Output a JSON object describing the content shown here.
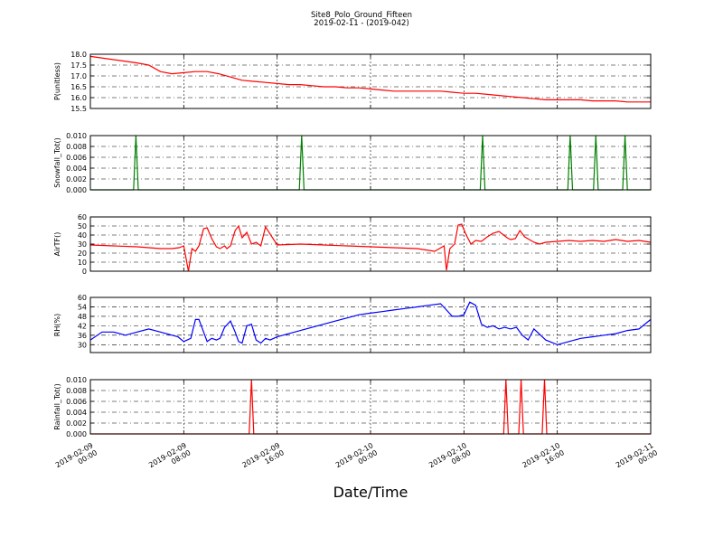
{
  "figure": {
    "title": "Site8_Polo_Ground_Fifteen",
    "subtitle": "2019-02-11 - (2019-042)",
    "xlabel": "Date/Time"
  },
  "chart_data": [
    {
      "type": "line",
      "ylabel": "P(unitless)",
      "color": "#ff0000",
      "ylim": [
        15.5,
        18.0
      ],
      "yticks": [
        "15.5",
        "16.0",
        "16.5",
        "17.0",
        "17.5",
        "18.0"
      ],
      "xlim": [
        0,
        48
      ],
      "xticks": [
        [
          "2019-02-09",
          "00:00"
        ],
        [
          "2019-02-09",
          "08:00"
        ],
        [
          "2019-02-09",
          "16:00"
        ],
        [
          "2019-02-10",
          "00:00"
        ],
        [
          "2019-02-10",
          "08:00"
        ],
        [
          "2019-02-10",
          "16:00"
        ],
        [
          "2019-02-11",
          "00:00"
        ]
      ],
      "grid": true,
      "series": [
        {
          "x": [
            0,
            2,
            4,
            5,
            6,
            7,
            8,
            9,
            10,
            11,
            12,
            13,
            14,
            15,
            16,
            17,
            18,
            19,
            20,
            21,
            22,
            23,
            24,
            25,
            26,
            27,
            28,
            29,
            30,
            31,
            32,
            33,
            34,
            35,
            36,
            37,
            38,
            39,
            40,
            41,
            42,
            43,
            44,
            45,
            46,
            47,
            48
          ],
          "y": [
            17.9,
            17.75,
            17.6,
            17.5,
            17.2,
            17.1,
            17.15,
            17.2,
            17.2,
            17.1,
            16.95,
            16.8,
            16.75,
            16.7,
            16.65,
            16.6,
            16.6,
            16.55,
            16.5,
            16.5,
            16.45,
            16.45,
            16.4,
            16.35,
            16.3,
            16.3,
            16.3,
            16.3,
            16.3,
            16.25,
            16.2,
            16.2,
            16.15,
            16.1,
            16.05,
            16.0,
            15.95,
            15.9,
            15.9,
            15.9,
            15.9,
            15.85,
            15.85,
            15.85,
            15.8,
            15.8,
            15.8
          ]
        }
      ]
    },
    {
      "type": "line",
      "ylabel": "Snowfall_Tot()",
      "color": "#008000",
      "ylim": [
        0.0,
        0.01
      ],
      "yticks": [
        "0.000",
        "0.002",
        "0.004",
        "0.006",
        "0.008",
        "0.010"
      ],
      "xlim": [
        0,
        48
      ],
      "grid": true,
      "series": [
        {
          "x": [
            0,
            3.7,
            3.9,
            4.1,
            17.9,
            18.1,
            18.3,
            33.4,
            33.6,
            33.8,
            40.9,
            41.1,
            41.3,
            43.1,
            43.3,
            43.5,
            45.6,
            45.8,
            46.0,
            48
          ],
          "y": [
            0,
            0,
            0.01,
            0,
            0,
            0.01,
            0,
            0,
            0.01,
            0,
            0,
            0.01,
            0,
            0,
            0.01,
            0,
            0,
            0.01,
            0,
            0
          ]
        }
      ]
    },
    {
      "type": "line",
      "ylabel": "AirTF()",
      "color": "#ff0000",
      "ylim": [
        0,
        60
      ],
      "yticks": [
        "0",
        "10",
        "20",
        "30",
        "40",
        "50",
        "60"
      ],
      "xlim": [
        0,
        48
      ],
      "grid": true,
      "series": [
        {
          "x": [
            0,
            2,
            4,
            5,
            6,
            7,
            7.6,
            7.8,
            8.0,
            8.4,
            8.7,
            9.0,
            9.3,
            9.7,
            10.0,
            10.4,
            10.8,
            11.1,
            11.5,
            11.7,
            12.0,
            12.4,
            12.7,
            13.0,
            13.4,
            13.8,
            14.2,
            14.6,
            15.0,
            16,
            18,
            20,
            22,
            24,
            26,
            28,
            29.5,
            30.3,
            30.5,
            30.8,
            31.2,
            31.5,
            31.8,
            32.2,
            32.6,
            33.0,
            33.5,
            34,
            34.5,
            35.0,
            35.4,
            35.7,
            36.0,
            36.4,
            36.8,
            37.2,
            37.6,
            38.0,
            38.5,
            39.0,
            40,
            41,
            42,
            43,
            44,
            45,
            46,
            47,
            48
          ],
          "y": [
            29,
            28,
            27,
            26,
            25,
            25,
            26,
            27,
            28,
            0,
            25,
            22,
            28,
            47,
            48,
            36,
            27,
            25,
            28,
            25,
            28,
            45,
            50,
            37,
            43,
            30,
            32,
            28,
            49,
            29,
            30,
            29,
            28,
            27,
            26,
            25,
            22,
            28,
            1,
            25,
            30,
            51,
            52,
            40,
            30,
            34,
            33,
            38,
            42,
            44,
            40,
            37,
            35,
            36,
            45,
            38,
            35,
            32,
            30,
            32,
            33,
            34,
            33,
            34,
            33,
            35,
            33,
            34,
            32
          ]
        }
      ]
    },
    {
      "type": "line",
      "ylabel": "RH(%)",
      "color": "#0000ff",
      "ylim": [
        25,
        60
      ],
      "yticks": [
        "30",
        "36",
        "42",
        "48",
        "54",
        "60"
      ],
      "xlim": [
        0,
        48
      ],
      "grid": true,
      "series": [
        {
          "x": [
            0,
            1,
            2,
            3,
            4,
            5,
            6,
            7,
            7.5,
            8,
            8.6,
            9.0,
            9.3,
            9.7,
            10.0,
            10.4,
            10.8,
            11.1,
            11.5,
            12.0,
            12.4,
            12.7,
            13.0,
            13.4,
            13.8,
            14.2,
            14.6,
            15.0,
            15.4,
            16,
            17,
            18,
            19,
            20,
            21,
            22,
            23,
            24,
            25,
            26,
            27,
            28,
            29,
            30,
            30.5,
            31,
            31.5,
            32,
            32.5,
            33,
            33.5,
            34,
            34.5,
            35,
            35.5,
            36,
            36.5,
            37,
            37.5,
            38,
            39,
            40,
            41,
            42,
            43,
            44,
            45,
            46,
            47,
            48
          ],
          "y": [
            33,
            38,
            38,
            36,
            38,
            40,
            38,
            36,
            35,
            32,
            34,
            46,
            46,
            38,
            32,
            34,
            33,
            34,
            41,
            45,
            38,
            32,
            31,
            42,
            43,
            33,
            31,
            34,
            33,
            35,
            37,
            39,
            41,
            43,
            45,
            47,
            49,
            50,
            51,
            52,
            53,
            54,
            55,
            56,
            52,
            48,
            48,
            49,
            57,
            55,
            43,
            41,
            42,
            40,
            41,
            40,
            41,
            36,
            33,
            40,
            33,
            30,
            32,
            34,
            35,
            36,
            37,
            39,
            40,
            46
          ]
        }
      ]
    },
    {
      "type": "line",
      "ylabel": "Rainfall_Tot()",
      "color": "#ff0000",
      "ylim": [
        0.0,
        0.01
      ],
      "yticks": [
        "0.000",
        "0.002",
        "0.004",
        "0.006",
        "0.008",
        "0.010"
      ],
      "xlim": [
        0,
        48
      ],
      "grid": true,
      "series": [
        {
          "x": [
            0,
            13.6,
            13.8,
            14.0,
            35.4,
            35.6,
            35.8,
            36.7,
            36.9,
            37.1,
            38.7,
            38.9,
            39.1,
            48
          ],
          "y": [
            0,
            0,
            0.01,
            0,
            0,
            0.01,
            0,
            0,
            0.01,
            0,
            0,
            0.01,
            0,
            0
          ]
        }
      ]
    }
  ]
}
